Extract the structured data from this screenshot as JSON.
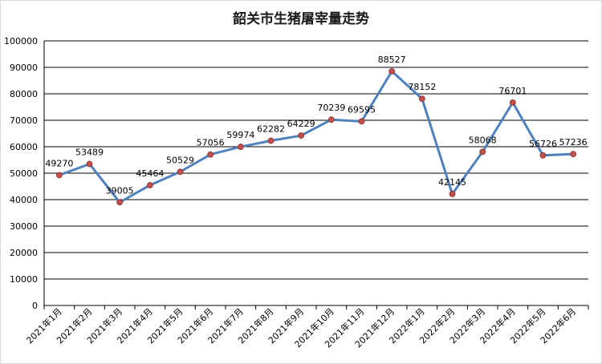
{
  "chart_data": {
    "type": "line",
    "title": "韶关市生猪屠宰量走势",
    "xlabel": "",
    "ylabel": "",
    "ylim": [
      0,
      100000
    ],
    "yticks": [
      0,
      10000,
      20000,
      30000,
      40000,
      50000,
      60000,
      70000,
      80000,
      90000,
      100000
    ],
    "categories": [
      "2021年1月",
      "2021年2月",
      "2021年3月",
      "2021年4月",
      "2021年5月",
      "2021年6月",
      "2021年7月",
      "2021年8月",
      "2021年9月",
      "2021年10月",
      "2021年11月",
      "2021年12月",
      "2022年1月",
      "2022年2月",
      "2022年3月",
      "2022年4月",
      "2022年5月",
      "2022年6月"
    ],
    "series": [
      {
        "values": [
          49270,
          53489,
          39005,
          45464,
          50529,
          57056,
          59974,
          62282,
          64229,
          70239,
          69595,
          88527,
          78152,
          42145,
          58068,
          76701,
          56726,
          57236
        ]
      }
    ],
    "grid": true,
    "legend": "none",
    "colors": {
      "line": "#4f81bd",
      "marker": "#c0504d",
      "grid": "#000000"
    }
  }
}
